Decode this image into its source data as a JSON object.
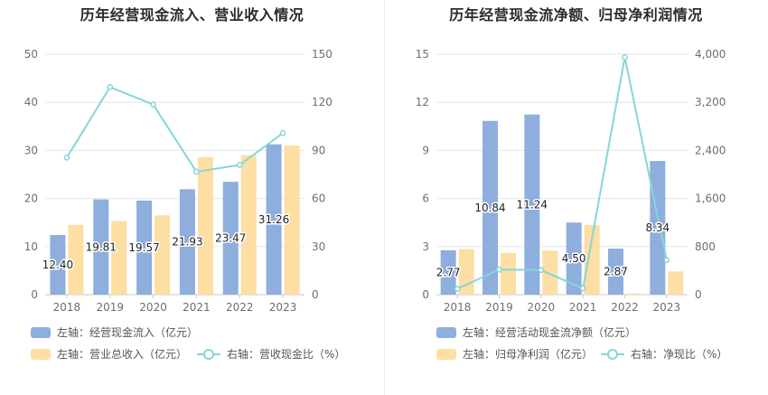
{
  "colors": {
    "bar1": "#8eaedd",
    "bar2": "#fddea3",
    "line": "#85d6da",
    "grid": "#e6e6e6"
  },
  "chart_data": [
    {
      "type": "bar",
      "title": "历年经营现金流入、营业收入情况",
      "categories": [
        "2018",
        "2019",
        "2020",
        "2021",
        "2022",
        "2023"
      ],
      "y_left": {
        "min": 0,
        "max": 50,
        "ticks": [
          "0",
          "10",
          "20",
          "30",
          "40",
          "50"
        ]
      },
      "y_right": {
        "min": 0,
        "max": 150,
        "ticks": [
          "0",
          "30",
          "60",
          "90",
          "120",
          "150"
        ]
      },
      "series": [
        {
          "name": "左轴：经营现金流入（亿元）",
          "axis": "left",
          "kind": "bar",
          "values": [
            12.4,
            19.81,
            19.57,
            21.93,
            23.47,
            31.26
          ],
          "labels": [
            "12.40",
            "19.81",
            "19.57",
            "21.93",
            "23.47",
            "31.26"
          ]
        },
        {
          "name": "左轴：营业总收入（亿元）",
          "axis": "left",
          "kind": "bar",
          "values": [
            14.5,
            15.3,
            16.5,
            28.6,
            29.0,
            31.0
          ]
        },
        {
          "name": "右轴：营收现金比（%）",
          "axis": "right",
          "kind": "line",
          "values": [
            85.5,
            129.5,
            118.6,
            76.7,
            80.9,
            100.8
          ]
        }
      ],
      "grid": true,
      "legend_position": "bottom-left"
    },
    {
      "type": "bar",
      "title": "历年经营现金流净额、归母净利润情况",
      "categories": [
        "2018",
        "2019",
        "2020",
        "2021",
        "2022",
        "2023"
      ],
      "y_left": {
        "min": 0,
        "max": 15,
        "ticks": [
          "0",
          "3",
          "6",
          "9",
          "12",
          "15"
        ]
      },
      "y_right": {
        "min": 0,
        "max": 4000,
        "ticks": [
          "0",
          "800",
          "1,600",
          "2,400",
          "3,200",
          "4,000"
        ]
      },
      "series": [
        {
          "name": "左轴：经营活动现金流净额（亿元）",
          "axis": "left",
          "kind": "bar",
          "values": [
            2.77,
            10.84,
            11.24,
            4.5,
            2.87,
            8.34
          ],
          "labels": [
            "2.77",
            "10.84",
            "11.24",
            "4.50",
            "2.87",
            "8.34"
          ]
        },
        {
          "name": "左轴：归母净利润（亿元）",
          "axis": "left",
          "kind": "bar",
          "values": [
            2.85,
            2.6,
            2.75,
            4.35,
            0.07,
            1.45
          ]
        },
        {
          "name": "右轴：净现比（%）",
          "axis": "right",
          "kind": "line",
          "values": [
            97,
            417,
            409,
            103,
            3950,
            575
          ]
        }
      ],
      "grid": true,
      "legend_position": "bottom-left"
    }
  ]
}
